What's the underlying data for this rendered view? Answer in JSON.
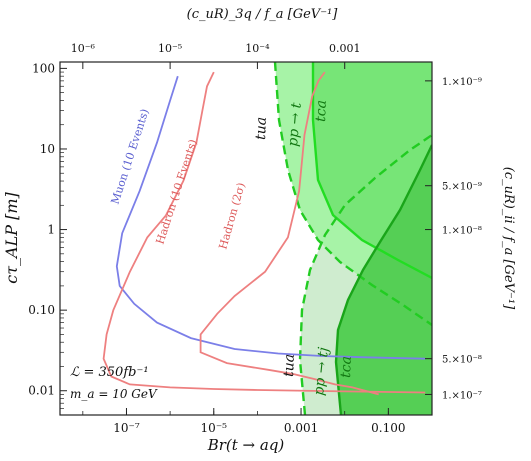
{
  "chart_data": {
    "type": "line",
    "xlabel": "Br(t → aq)",
    "ylabel": "cτ_ALP [m]",
    "x_scale": "log",
    "y_scale": "log",
    "xlim": [
      3e-09,
      1.0
    ],
    "ylim": [
      0.005,
      120
    ],
    "bottom_ticks": [
      {
        "value": 1e-07,
        "label": "10⁻⁷"
      },
      {
        "value": 1e-05,
        "label": "10⁻⁵"
      },
      {
        "value": 0.001,
        "label": "0.001"
      },
      {
        "value": 0.1,
        "label": "0.100"
      }
    ],
    "left_ticks": [
      {
        "value": 100,
        "label": "100"
      },
      {
        "value": 10,
        "label": "10"
      },
      {
        "value": 1,
        "label": "1"
      },
      {
        "value": 0.1,
        "label": "0.10"
      },
      {
        "value": 0.01,
        "label": "0.01"
      }
    ],
    "top_axis": {
      "label": "(c_uR)_3q / f_a [GeV⁻¹]",
      "ticks": [
        {
          "x": 1e-08,
          "label": "10⁻⁶"
        },
        {
          "x": 1e-06,
          "label": "10⁻⁵"
        },
        {
          "x": 0.0001,
          "label": "10⁻⁴"
        },
        {
          "x": 0.01,
          "label": "0.001"
        }
      ]
    },
    "right_axis": {
      "label": "(c_uR)_ii / f_a [GeV⁻¹]",
      "ticks": [
        {
          "y": 70,
          "label": "1.×10⁻⁹"
        },
        {
          "y": 3.5,
          "label": "5.×10⁻⁹"
        },
        {
          "y": 1.0,
          "label": "1.×10⁻⁸"
        },
        {
          "y": 0.025,
          "label": "5.×10⁻⁸"
        },
        {
          "y": 0.009,
          "label": "1.×10⁻⁷"
        }
      ]
    },
    "series": [
      {
        "name": "Muon (10 Events)",
        "color": "#7b7fe8",
        "points": [
          [
            1.5e-06,
            80
          ],
          [
            1e-06,
            40
          ],
          [
            5e-07,
            12
          ],
          [
            2e-07,
            3
          ],
          [
            8e-08,
            0.9
          ],
          [
            6e-08,
            0.35
          ],
          [
            7e-08,
            0.2
          ],
          [
            1.5e-07,
            0.12
          ],
          [
            5e-07,
            0.07
          ],
          [
            3e-06,
            0.045
          ],
          [
            3e-05,
            0.033
          ],
          [
            0.0003,
            0.029
          ],
          [
            0.003,
            0.027
          ],
          [
            0.03,
            0.026
          ],
          [
            0.7,
            0.025
          ]
        ]
      },
      {
        "name": "Hadron (10 Events)",
        "color": "#ee8080",
        "points": [
          [
            1e-05,
            90
          ],
          [
            7e-06,
            60
          ],
          [
            5.5e-06,
            30
          ],
          [
            4e-06,
            12
          ],
          [
            2e-06,
            4
          ],
          [
            8e-07,
            1.5
          ],
          [
            3e-07,
            0.8
          ],
          [
            1.2e-07,
            0.3
          ],
          [
            5e-08,
            0.1
          ],
          [
            3.5e-08,
            0.05
          ],
          [
            3e-08,
            0.025
          ],
          [
            4.5e-08,
            0.015
          ],
          [
            1.2e-07,
            0.012
          ],
          [
            1e-06,
            0.011
          ],
          [
            1e-05,
            0.0105
          ],
          [
            0.0001,
            0.0102
          ],
          [
            0.01,
            0.0098
          ],
          [
            0.7,
            0.0095
          ]
        ]
      },
      {
        "name": "Hadron (2σ)",
        "color": "#ee8080",
        "points": [
          [
            0.0035,
            90
          ],
          [
            0.0025,
            70
          ],
          [
            0.0018,
            45
          ],
          [
            0.0012,
            15
          ],
          [
            0.0009,
            3
          ],
          [
            0.0005,
            0.8
          ],
          [
            0.00015,
            0.3
          ],
          [
            3e-05,
            0.15
          ],
          [
            1.2e-05,
            0.09
          ],
          [
            5e-06,
            0.05
          ],
          [
            5e-06,
            0.03
          ],
          [
            2e-05,
            0.022
          ],
          [
            0.0002,
            0.018
          ],
          [
            0.0007,
            0.016
          ],
          [
            0.002,
            0.014
          ],
          [
            0.006,
            0.012
          ],
          [
            0.015,
            0.011
          ],
          [
            0.06,
            0.009
          ]
        ]
      }
    ],
    "regions": [
      {
        "name": "pp → t",
        "type": "dashed",
        "color": "#22cc22"
      },
      {
        "name": "tca",
        "type": "solid",
        "color": "#22cc22"
      },
      {
        "name": "pp → tj",
        "type": "dashed",
        "color": "#22cc22"
      },
      {
        "name": "tca",
        "type": "solid",
        "color": "#1a991a"
      }
    ],
    "annotations": {
      "lumi": "ℒ = 350fb⁻¹",
      "mass": "m_a = 10 GeV",
      "tua_top": "tua",
      "tua_bottom": "tua",
      "pp_t": "pp → t",
      "tca_top": "tca",
      "pp_tj": "pp → tj",
      "tca_bottom": "tca"
    }
  }
}
